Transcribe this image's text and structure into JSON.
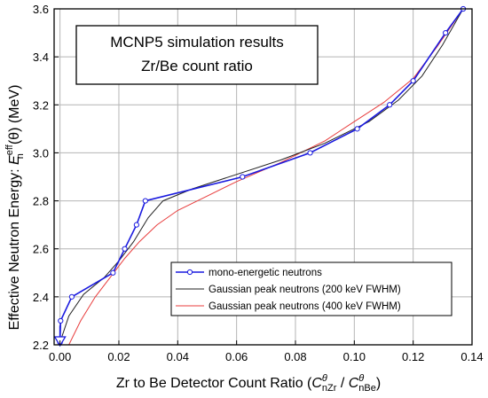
{
  "chart_data": {
    "type": "line",
    "title": "",
    "inset_title": [
      "MCNP5 simulation results",
      "Zr/Be count ratio"
    ],
    "xlabel": {
      "text": "Zr to Be Detector Count Ratio (",
      "c1": "C",
      "c1_sup": "θ",
      "c1_sub": "nZr",
      "slash": " / ",
      "c2": "C",
      "c2_sup": "θ",
      "c2_sub": "nBe",
      "close": ")"
    },
    "ylabel": {
      "text": "Effective Neutron Energy: ",
      "e": "E",
      "e_sup": "eff",
      "e_sub": "n",
      "theta": "(θ) (MeV)"
    },
    "xlim": [
      -0.002,
      0.14
    ],
    "ylim": [
      2.2,
      3.6
    ],
    "xticks": [
      0.0,
      0.02,
      0.04,
      0.06,
      0.08,
      0.1,
      0.12,
      0.14
    ],
    "xtick_labels": [
      "0.00",
      "0.02",
      "0.04",
      "0.06",
      "0.08",
      "0.10",
      "0.12",
      "0.14"
    ],
    "yticks": [
      2.2,
      2.4,
      2.6,
      2.8,
      3.0,
      3.2,
      3.4,
      3.6
    ],
    "ytick_labels": [
      "2.2",
      "2.4",
      "2.6",
      "2.8",
      "3.0",
      "3.2",
      "3.4",
      "3.6"
    ],
    "grid": true,
    "legend_position": "bottom-right",
    "series": [
      {
        "name": "mono-energetic neutrons",
        "color": "#1a1adf",
        "marker": "circle",
        "x": [
          0.0,
          0.0002,
          0.004,
          0.018,
          0.022,
          0.026,
          0.029,
          0.062,
          0.085,
          0.101,
          0.112,
          0.12,
          0.131,
          0.137
        ],
        "y": [
          2.21,
          2.3,
          2.4,
          2.5,
          2.6,
          2.7,
          2.8,
          2.9,
          3.0,
          3.1,
          3.2,
          3.3,
          3.5,
          3.6
        ]
      },
      {
        "name": "Gaussian peak neutrons (200 keV FWHM)",
        "color": "#222222",
        "marker": "none",
        "x": [
          0.0,
          0.003,
          0.008,
          0.015,
          0.02,
          0.025,
          0.03,
          0.035,
          0.045,
          0.06,
          0.075,
          0.09,
          0.105,
          0.115,
          0.123,
          0.13,
          0.137
        ],
        "y": [
          2.21,
          2.32,
          2.41,
          2.48,
          2.55,
          2.63,
          2.73,
          2.8,
          2.85,
          2.91,
          2.97,
          3.04,
          3.13,
          3.22,
          3.32,
          3.45,
          3.6
        ]
      },
      {
        "name": "Gaussian peak neutrons (400 keV FWHM)",
        "color": "#e83c3c",
        "marker": "none",
        "x": [
          0.003,
          0.007,
          0.012,
          0.017,
          0.022,
          0.027,
          0.033,
          0.04,
          0.05,
          0.06,
          0.075,
          0.09,
          0.1,
          0.11,
          0.12,
          0.128,
          0.137
        ],
        "y": [
          2.2,
          2.3,
          2.4,
          2.48,
          2.56,
          2.63,
          2.7,
          2.76,
          2.82,
          2.88,
          2.96,
          3.05,
          3.13,
          3.21,
          3.31,
          3.44,
          3.6
        ]
      }
    ],
    "arrow_marker": {
      "x": 0.0,
      "y": 2.2,
      "shape": "down-triangle",
      "color": "#1a1adf"
    }
  }
}
